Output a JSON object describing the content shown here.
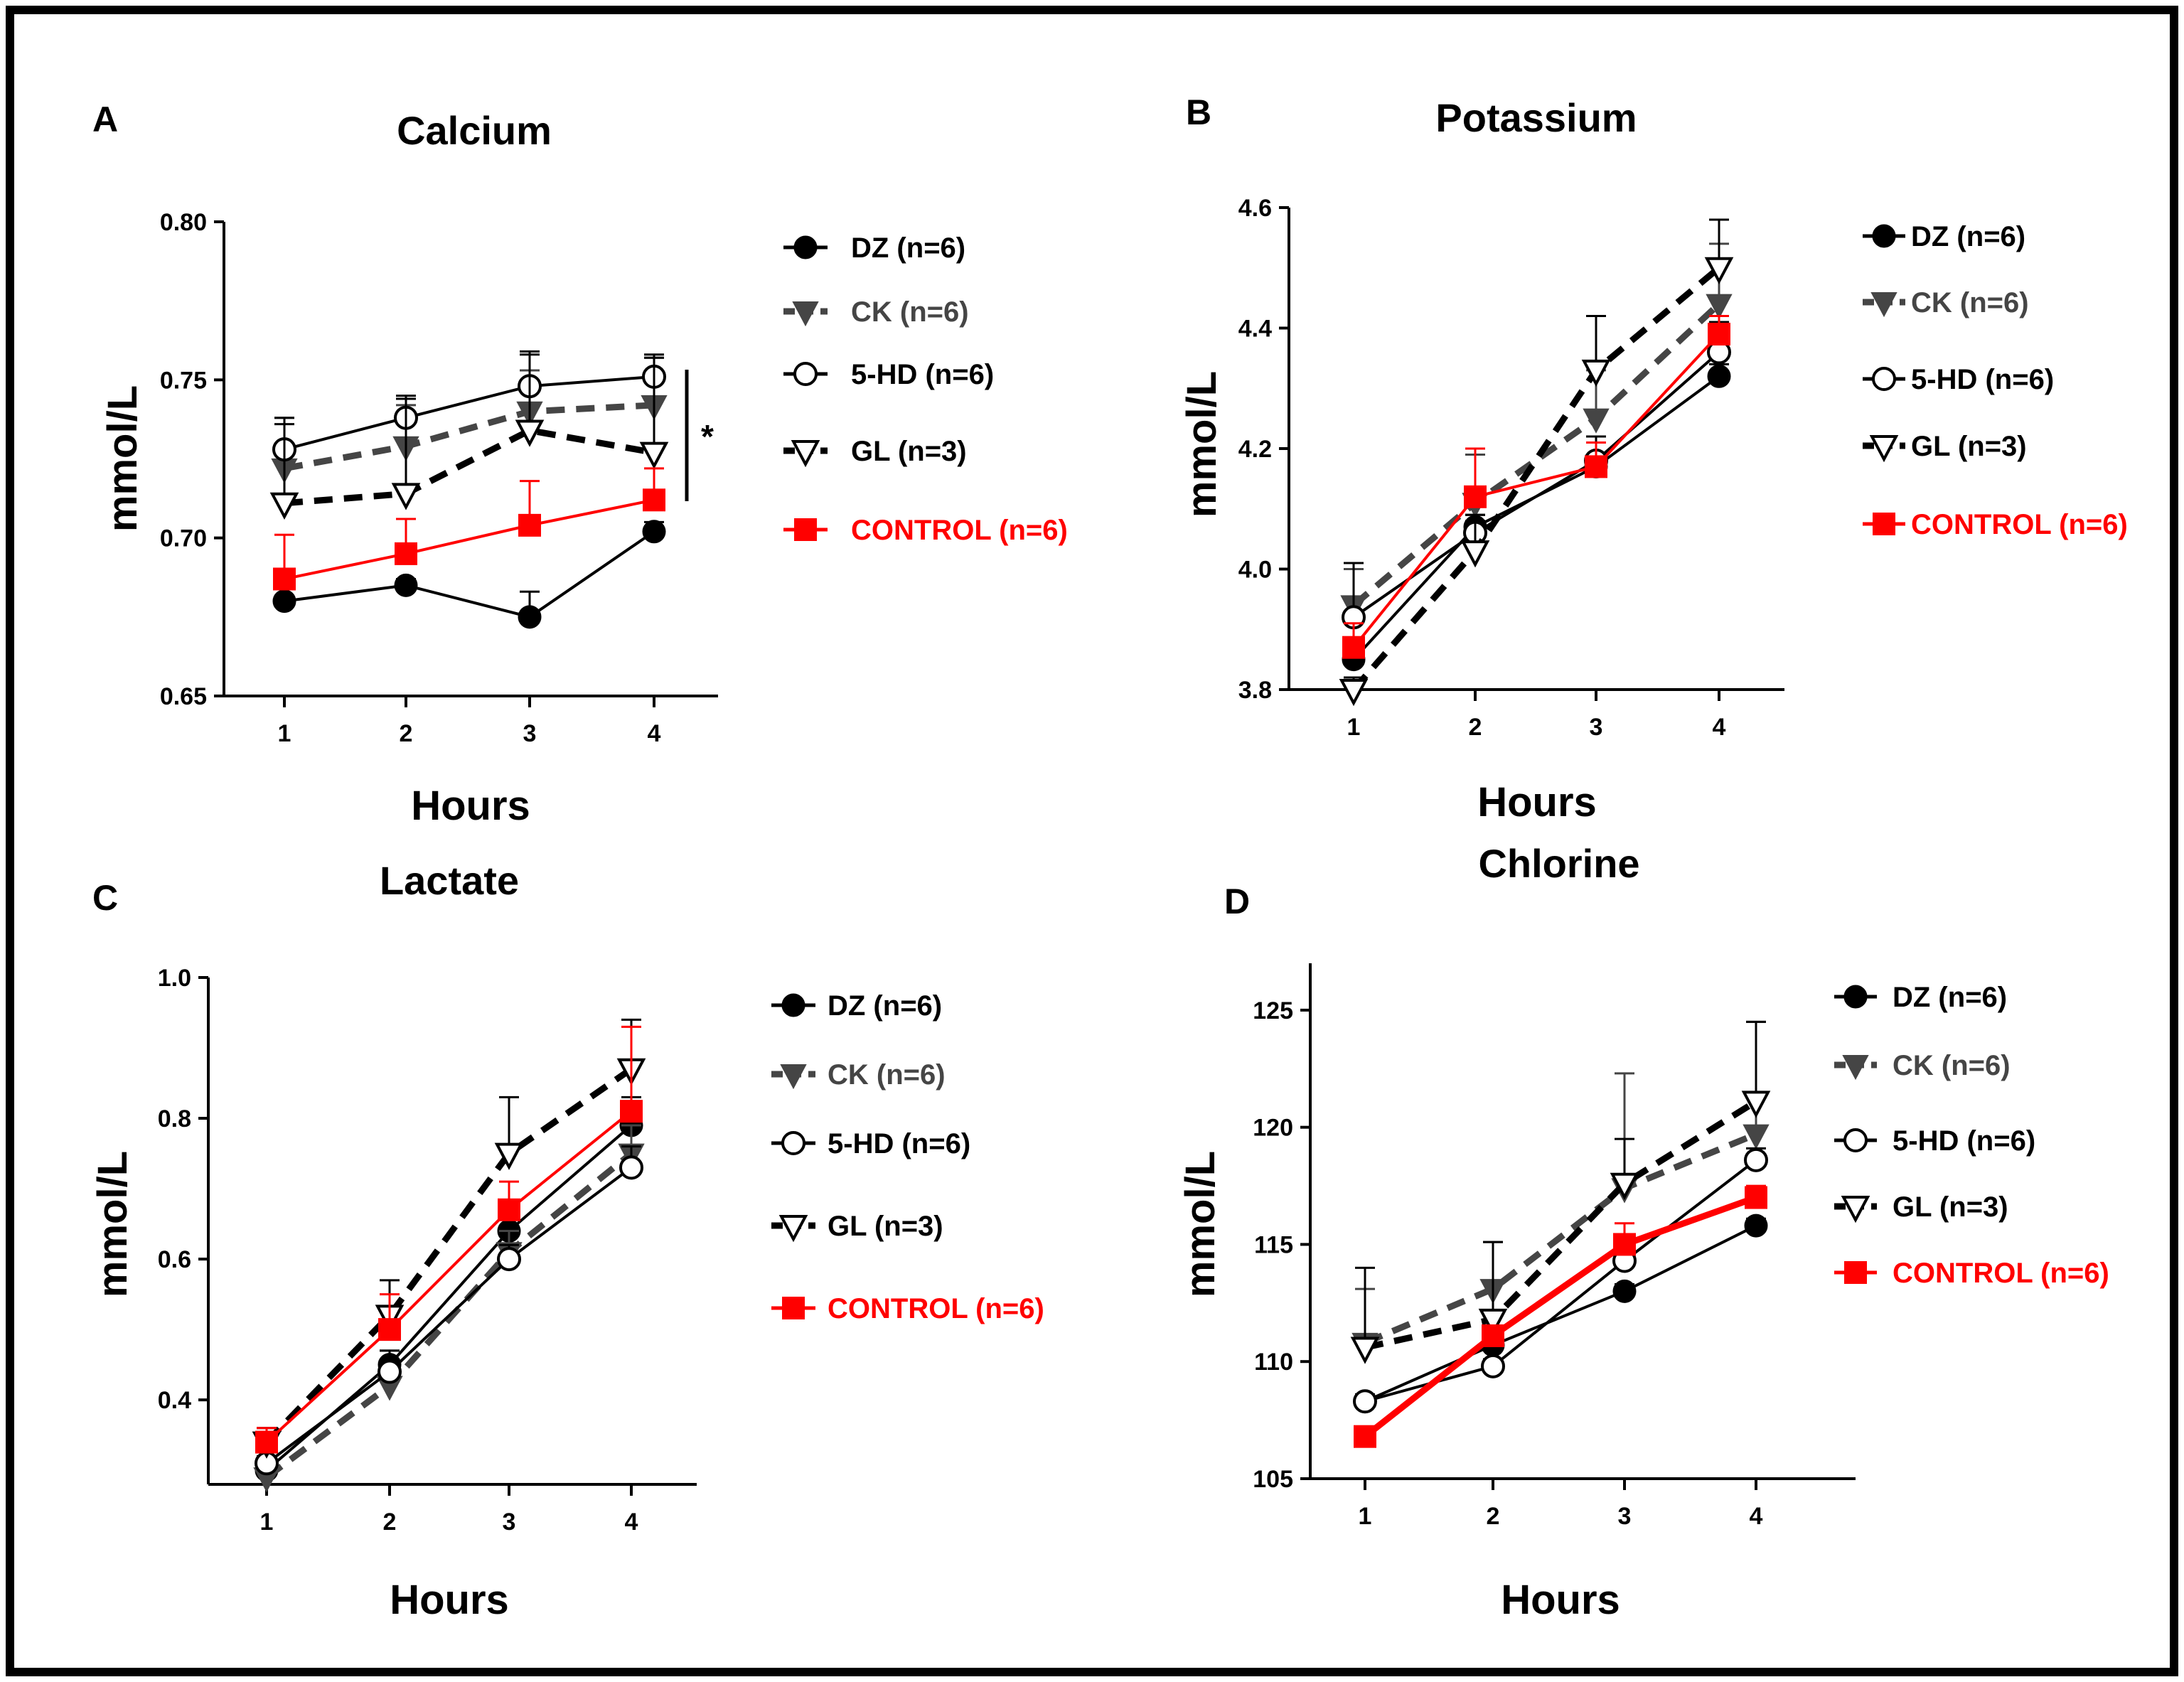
{
  "chart_data": [
    {
      "id": "A",
      "type": "line",
      "panel_label": "A",
      "title": "Calcium",
      "xlabel": "Hours",
      "ylabel": "mmol/L",
      "x": [
        1,
        2,
        3,
        4
      ],
      "x_ticks": [
        "1",
        "2",
        "3",
        "4"
      ],
      "ylim": [
        0.65,
        0.8
      ],
      "y_ticks": [
        "0.65",
        "0.70",
        "0.75",
        "0.80"
      ],
      "significance": "*",
      "series": [
        {
          "name": "DZ (n=6)",
          "color": "#000000",
          "marker": "circle-filled",
          "line": "solid",
          "values": [
            0.68,
            0.685,
            0.675,
            0.702
          ],
          "errors": [
            0.001,
            0.002,
            0.008,
            0.003
          ]
        },
        {
          "name": "CK (n=6)",
          "color": "#454545",
          "marker": "triangle-down-filled",
          "line": "dashed",
          "values": [
            0.722,
            0.729,
            0.74,
            0.742
          ],
          "errors": [
            0.016,
            0.013,
            0.013,
            0.015
          ]
        },
        {
          "name": "5-HD (n=6)",
          "color": "#000000",
          "marker": "circle-open",
          "line": "solid",
          "values": [
            0.728,
            0.738,
            0.748,
            0.751
          ],
          "errors": [
            0.01,
            0.006,
            0.011,
            0.007
          ]
        },
        {
          "name": "GL (n=3)",
          "color": "#000000",
          "marker": "triangle-down-open",
          "line": "dashed",
          "values": [
            0.711,
            0.714,
            0.734,
            0.727
          ],
          "errors": [
            0.025,
            0.031,
            0.024,
            0.03
          ]
        },
        {
          "name": "CONTROL (n=6)",
          "color": "#ff0000",
          "marker": "square-filled",
          "line": "solid",
          "values": [
            0.687,
            0.695,
            0.704,
            0.712
          ],
          "errors": [
            0.014,
            0.011,
            0.014,
            0.01
          ]
        }
      ]
    },
    {
      "id": "B",
      "type": "line",
      "panel_label": "B",
      "title": "Potassium",
      "xlabel": "Hours",
      "ylabel": "mmol/L",
      "x": [
        1,
        2,
        3,
        4
      ],
      "x_ticks": [
        "1",
        "2",
        "3",
        "4"
      ],
      "ylim": [
        3.8,
        4.6
      ],
      "y_ticks": [
        "3.8",
        "4.0",
        "4.2",
        "4.4",
        "4.6"
      ],
      "series": [
        {
          "name": "DZ (n=6)",
          "color": "#000000",
          "marker": "circle-filled",
          "line": "solid",
          "values": [
            3.85,
            4.07,
            4.17,
            4.32
          ],
          "errors": [
            0.02,
            0.02,
            0.02,
            0.02
          ]
        },
        {
          "name": "CK (n=6)",
          "color": "#454545",
          "marker": "triangle-down-filled",
          "line": "dashed",
          "values": [
            3.94,
            4.11,
            4.25,
            4.44
          ],
          "errors": [
            0.06,
            0.08,
            0.08,
            0.1
          ]
        },
        {
          "name": "5-HD (n=6)",
          "color": "#000000",
          "marker": "circle-open",
          "line": "solid",
          "values": [
            3.92,
            4.06,
            4.18,
            4.36
          ],
          "errors": [
            0.09,
            0.03,
            0.04,
            0.05
          ]
        },
        {
          "name": "GL (n=3)",
          "color": "#000000",
          "marker": "triangle-down-open",
          "line": "dashed",
          "values": [
            3.8,
            4.03,
            4.33,
            4.5
          ],
          "errors": [
            0.02,
            0.05,
            0.09,
            0.08
          ]
        },
        {
          "name": "CONTROL (n=6)",
          "color": "#ff0000",
          "marker": "square-filled",
          "line": "solid",
          "values": [
            3.87,
            4.12,
            4.17,
            4.39
          ],
          "errors": [
            0.04,
            0.08,
            0.04,
            0.03
          ]
        }
      ]
    },
    {
      "id": "C",
      "type": "line",
      "panel_label": "C",
      "title": "Lactate",
      "xlabel": "Hours",
      "ylabel": "mmol/L",
      "x": [
        1,
        2,
        3,
        4
      ],
      "x_ticks": [
        "1",
        "2",
        "3",
        "4"
      ],
      "ylim": [
        0.28,
        1.0
      ],
      "y_ticks": [
        "0.4",
        "0.6",
        "0.8",
        "1.0"
      ],
      "y_tick_values": [
        0.4,
        0.6,
        0.8,
        1.0
      ],
      "series": [
        {
          "name": "DZ (n=6)",
          "color": "#000000",
          "marker": "circle-filled",
          "line": "solid",
          "values": [
            0.3,
            0.45,
            0.64,
            0.79
          ],
          "errors": [
            0.01,
            0.02,
            0.03,
            0.04
          ]
        },
        {
          "name": "CK (n=6)",
          "color": "#454545",
          "marker": "triangle-down-filled",
          "line": "dashed",
          "values": [
            0.29,
            0.42,
            0.61,
            0.75
          ],
          "errors": [
            0.02,
            0.02,
            0.03,
            0.04
          ]
        },
        {
          "name": "5-HD (n=6)",
          "color": "#000000",
          "marker": "circle-open",
          "line": "solid",
          "values": [
            0.31,
            0.44,
            0.6,
            0.73
          ],
          "errors": [
            0.01,
            0.03,
            0.02,
            0.03
          ]
        },
        {
          "name": "GL (n=3)",
          "color": "#000000",
          "marker": "triangle-down-open",
          "line": "dashed",
          "values": [
            0.34,
            0.52,
            0.75,
            0.87
          ],
          "errors": [
            0.02,
            0.05,
            0.08,
            0.07
          ]
        },
        {
          "name": "CONTROL (n=6)",
          "color": "#ff0000",
          "marker": "square-filled",
          "line": "solid",
          "values": [
            0.34,
            0.5,
            0.67,
            0.81
          ],
          "errors": [
            0.02,
            0.05,
            0.04,
            0.12
          ]
        }
      ]
    },
    {
      "id": "D",
      "type": "line",
      "panel_label": "D",
      "title": "Chlorine",
      "xlabel": "Hours",
      "ylabel": "mmol/L",
      "x": [
        1,
        2,
        3,
        4
      ],
      "x_ticks": [
        "1",
        "2",
        "3",
        "4"
      ],
      "ylim": [
        105,
        127
      ],
      "y_ticks": [
        "105",
        "110",
        "115",
        "120",
        "125"
      ],
      "y_tick_values": [
        105,
        110,
        115,
        120,
        125
      ],
      "series": [
        {
          "name": "DZ (n=6)",
          "color": "#000000",
          "marker": "circle-filled",
          "line": "solid",
          "values": [
            108.3,
            110.7,
            113.0,
            115.8
          ],
          "errors": [
            0.3,
            0.3,
            0.3,
            0.3
          ]
        },
        {
          "name": "CK (n=6)",
          "color": "#454545",
          "marker": "triangle-down-filled",
          "line": "dashed",
          "values": [
            110.8,
            113.1,
            117.4,
            119.7
          ],
          "errors": [
            2.3,
            2.0,
            4.9,
            4.8
          ]
        },
        {
          "name": "5-HD (n=6)",
          "color": "#000000",
          "marker": "circle-open",
          "line": "solid",
          "values": [
            108.3,
            109.8,
            114.3,
            118.6
          ],
          "errors": [
            0.3,
            0.3,
            0.4,
            0.5
          ]
        },
        {
          "name": "GL (n=3)",
          "color": "#000000",
          "marker": "triangle-down-open",
          "line": "dashed",
          "values": [
            110.6,
            111.8,
            117.6,
            121.1
          ],
          "errors": [
            3.4,
            3.3,
            1.9,
            3.4
          ]
        },
        {
          "name": "CONTROL (n=6)",
          "color": "#ff0000",
          "marker": "square-filled",
          "line": "solid",
          "values": [
            106.8,
            111.1,
            115.0,
            117.0
          ],
          "errors": [
            0.2,
            0.3,
            0.9,
            0.5
          ]
        }
      ]
    }
  ]
}
